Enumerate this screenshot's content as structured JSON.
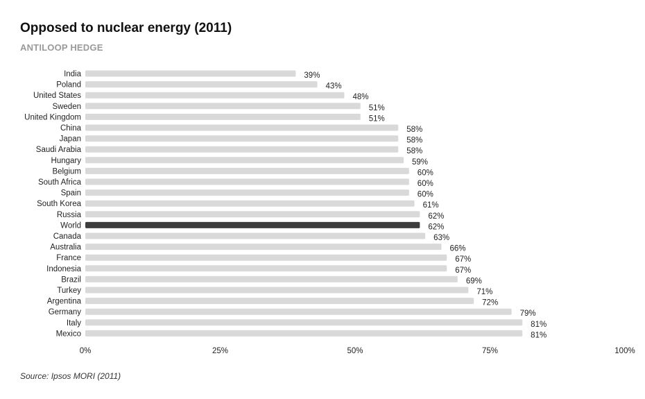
{
  "title": "Opposed to nuclear energy (2011)",
  "subtitle": "ANTILOOP HEDGE",
  "source": "Source: Ipsos MORI (2011)",
  "colors": {
    "bar": "#d9d9d9",
    "highlight": "#3d3d3d"
  },
  "chart_data": {
    "type": "bar",
    "orientation": "horizontal",
    "highlight": "World",
    "categories": [
      "India",
      "Poland",
      "United States",
      "Sweden",
      "United Kingdom",
      "China",
      "Japan",
      "Saudi Arabia",
      "Hungary",
      "Belgium",
      "South Africa",
      "Spain",
      "South Korea",
      "Russia",
      "World",
      "Canada",
      "Australia",
      "France",
      "Indonesia",
      "Brazil",
      "Turkey",
      "Argentina",
      "Germany",
      "Italy",
      "Mexico"
    ],
    "values": [
      39,
      43,
      48,
      51,
      51,
      58,
      58,
      58,
      59,
      60,
      60,
      60,
      61,
      62,
      62,
      63,
      66,
      67,
      67,
      69,
      71,
      72,
      79,
      81,
      81
    ],
    "value_suffix": "%",
    "xlim": [
      0,
      100
    ],
    "xticks": [
      0,
      25,
      50,
      75,
      100
    ],
    "xtick_labels": [
      "0%",
      "25%",
      "50%",
      "75%",
      "100%"
    ],
    "grid": false
  }
}
